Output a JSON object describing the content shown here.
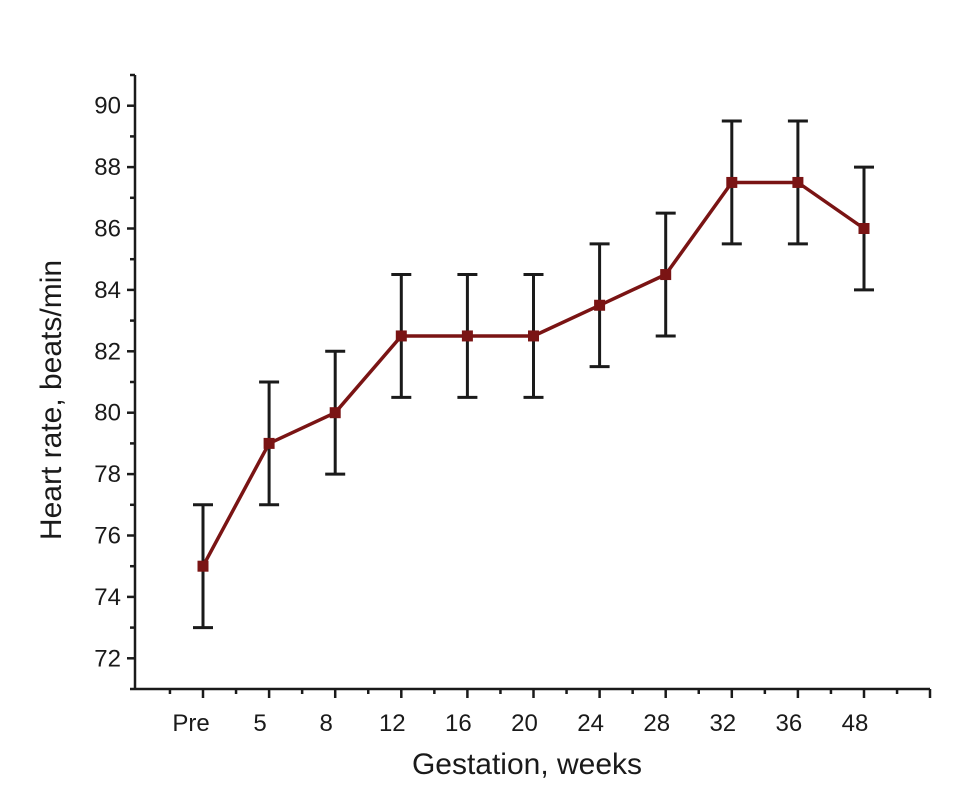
{
  "chart_data": {
    "type": "line",
    "title": "",
    "xlabel": "Gestation, weeks",
    "ylabel": "Heart rate, beats/min",
    "categories": [
      "Pre",
      "5",
      "8",
      "12",
      "16",
      "20",
      "24",
      "28",
      "32",
      "36",
      "48"
    ],
    "series": [
      {
        "values": [
          75,
          79,
          80,
          82.5,
          82.5,
          82.5,
          83.5,
          84.5,
          87.5,
          87.5,
          86
        ],
        "error": [
          2,
          2,
          2,
          2,
          2,
          2,
          2,
          2,
          2,
          2,
          2
        ],
        "color": "#7a1414"
      }
    ],
    "ylim": [
      71,
      91
    ],
    "yticks": [
      72,
      74,
      76,
      78,
      80,
      82,
      84,
      86,
      88,
      90
    ],
    "grid": false,
    "legend": "none"
  }
}
